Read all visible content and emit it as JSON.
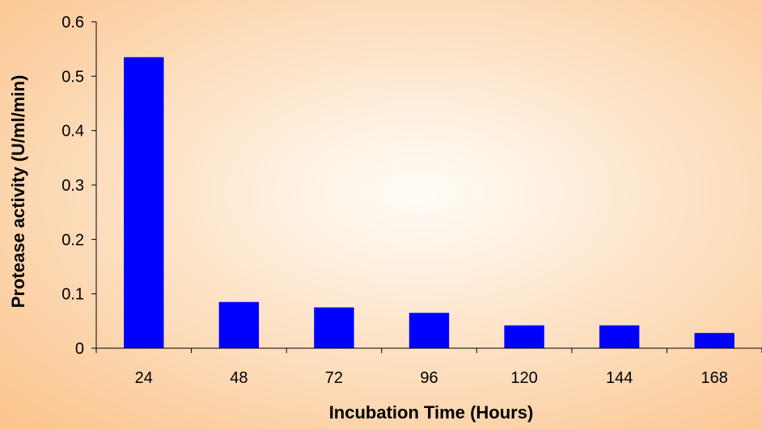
{
  "chart_data": {
    "type": "bar",
    "title": "",
    "xlabel": "Incubation Time (Hours)",
    "ylabel": "Protease activity (U/ml/min)",
    "categories": [
      "24",
      "48",
      "72",
      "96",
      "120",
      "144",
      "168"
    ],
    "values": [
      0.535,
      0.085,
      0.075,
      0.065,
      0.042,
      0.042,
      0.028
    ],
    "ylim": [
      0,
      0.6
    ],
    "yticks": [
      "0",
      "0.1",
      "0.2",
      "0.3",
      "0.4",
      "0.5",
      "0.6"
    ],
    "grid": false,
    "legend": "none",
    "colors": {
      "bar": "#0000FF",
      "background_center": "#FFFDF8",
      "background_edge": "#FBC58F",
      "axis": "#000000"
    }
  }
}
